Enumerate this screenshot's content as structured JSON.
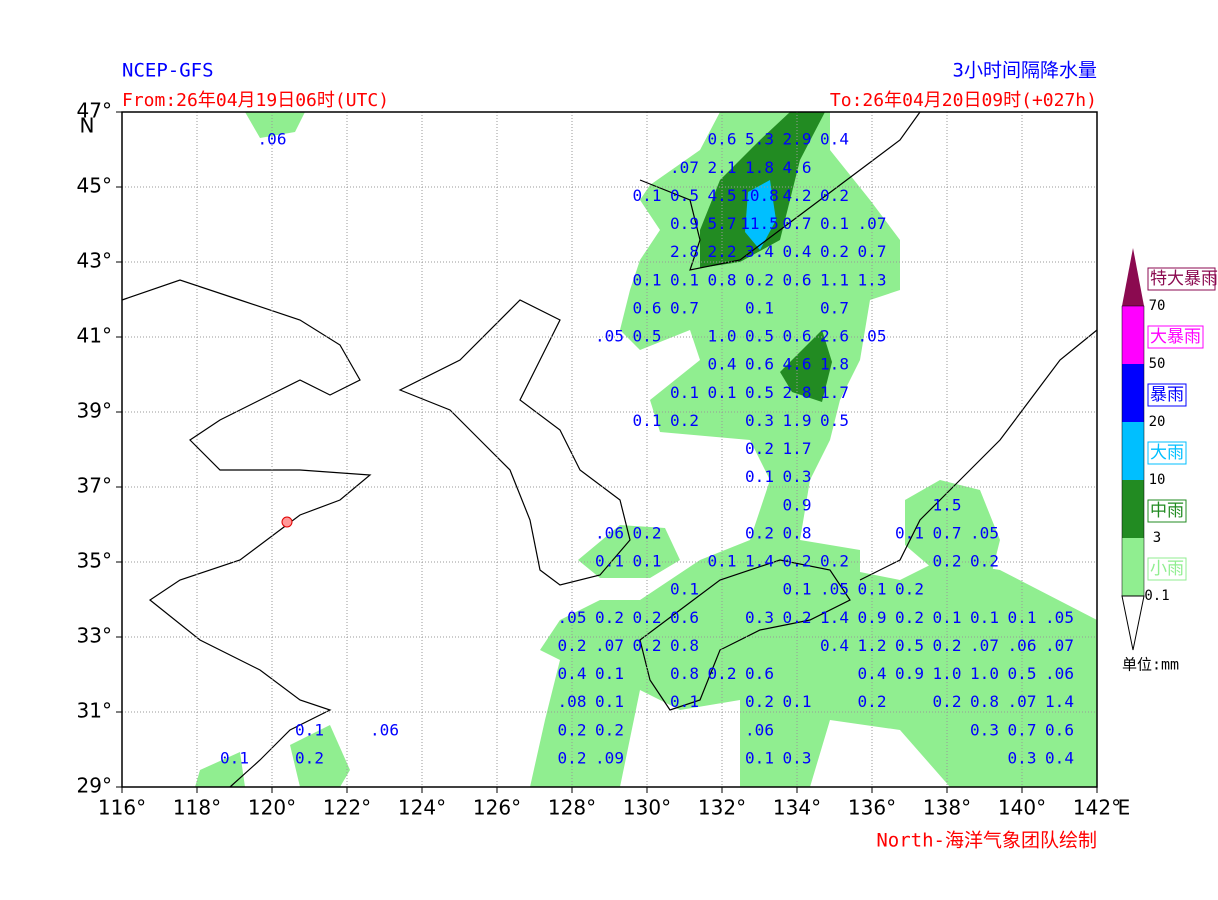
{
  "header": {
    "model": "NCEP-GFS",
    "product": "3小时间隔降水量",
    "from": "From:26年04月19日06时(UTC)",
    "to": "To:26年04月20日09时(+027h)"
  },
  "map": {
    "lon_range": [
      116,
      142
    ],
    "lat_range": [
      29,
      47
    ],
    "lon_ticks": [
      {
        "value": 116,
        "label": "116°"
      },
      {
        "value": 118,
        "label": "118°"
      },
      {
        "value": 120,
        "label": "120°"
      },
      {
        "value": 122,
        "label": "122°"
      },
      {
        "value": 124,
        "label": "124°"
      },
      {
        "value": 126,
        "label": "126°"
      },
      {
        "value": 128,
        "label": "128°"
      },
      {
        "value": 130,
        "label": "130°"
      },
      {
        "value": 132,
        "label": "132°"
      },
      {
        "value": 134,
        "label": "134°"
      },
      {
        "value": 136,
        "label": "136°"
      },
      {
        "value": 138,
        "label": "138°"
      },
      {
        "value": 140,
        "label": "140°"
      },
      {
        "value": 142,
        "label": "142°"
      }
    ],
    "lat_ticks": [
      {
        "value": 29,
        "label": "29°"
      },
      {
        "value": 31,
        "label": "31°"
      },
      {
        "value": 33,
        "label": "33°"
      },
      {
        "value": 35,
        "label": "35°"
      },
      {
        "value": 37,
        "label": "37°"
      },
      {
        "value": 39,
        "label": "39°"
      },
      {
        "value": 41,
        "label": "41°"
      },
      {
        "value": 43,
        "label": "43°"
      },
      {
        "value": 45,
        "label": "45°"
      },
      {
        "value": 47,
        "label": "47°"
      }
    ],
    "lon_unit": "E",
    "lat_unit": "N",
    "rows": [
      {
        "lat": 46.25,
        "cells": [
          {
            "lon": 120,
            "text": ".06"
          },
          {
            "lon": 132,
            "text": "0.6"
          },
          {
            "lon": 133,
            "text": "5.3"
          },
          {
            "lon": 134,
            "text": "2.9"
          },
          {
            "lon": 135,
            "text": "0.4"
          }
        ]
      },
      {
        "lat": 45.5,
        "cells": [
          {
            "lon": 131,
            "text": ".07"
          },
          {
            "lon": 132,
            "text": "2.1"
          },
          {
            "lon": 133,
            "text": "1.8"
          },
          {
            "lon": 134,
            "text": "4.6"
          }
        ]
      },
      {
        "lat": 44.75,
        "cells": [
          {
            "lon": 130,
            "text": "0.1"
          },
          {
            "lon": 131,
            "text": "0.5"
          },
          {
            "lon": 132,
            "text": "4.5"
          },
          {
            "lon": 133,
            "text": "10.8"
          },
          {
            "lon": 134,
            "text": "4.2"
          },
          {
            "lon": 135,
            "text": "0.2"
          }
        ]
      },
      {
        "lat": 44.0,
        "cells": [
          {
            "lon": 131,
            "text": "0.9"
          },
          {
            "lon": 132,
            "text": "5.7"
          },
          {
            "lon": 133,
            "text": "11.5"
          },
          {
            "lon": 134,
            "text": "0.7"
          },
          {
            "lon": 135,
            "text": "0.1"
          },
          {
            "lon": 136,
            "text": ".07"
          }
        ]
      },
      {
        "lat": 43.25,
        "cells": [
          {
            "lon": 131,
            "text": "2.8"
          },
          {
            "lon": 132,
            "text": "2.2"
          },
          {
            "lon": 133,
            "text": "3.4"
          },
          {
            "lon": 134,
            "text": "0.4"
          },
          {
            "lon": 135,
            "text": "0.2"
          },
          {
            "lon": 136,
            "text": "0.7"
          }
        ]
      },
      {
        "lat": 42.5,
        "cells": [
          {
            "lon": 130,
            "text": "0.1"
          },
          {
            "lon": 131,
            "text": "0.1"
          },
          {
            "lon": 132,
            "text": "0.8"
          },
          {
            "lon": 133,
            "text": "0.2"
          },
          {
            "lon": 134,
            "text": "0.6"
          },
          {
            "lon": 135,
            "text": "1.1"
          },
          {
            "lon": 136,
            "text": "1.3"
          }
        ]
      },
      {
        "lat": 41.75,
        "cells": [
          {
            "lon": 130,
            "text": "0.6"
          },
          {
            "lon": 131,
            "text": "0.7"
          },
          {
            "lon": 133,
            "text": "0.1"
          },
          {
            "lon": 135,
            "text": "0.7"
          }
        ]
      },
      {
        "lat": 41.0,
        "cells": [
          {
            "lon": 129,
            "text": ".05"
          },
          {
            "lon": 130,
            "text": "0.5"
          },
          {
            "lon": 132,
            "text": "1.0"
          },
          {
            "lon": 133,
            "text": "0.5"
          },
          {
            "lon": 134,
            "text": "0.6"
          },
          {
            "lon": 135,
            "text": "2.6"
          },
          {
            "lon": 136,
            "text": ".05"
          }
        ]
      },
      {
        "lat": 40.25,
        "cells": [
          {
            "lon": 132,
            "text": "0.4"
          },
          {
            "lon": 133,
            "text": "0.6"
          },
          {
            "lon": 134,
            "text": "4.6"
          },
          {
            "lon": 135,
            "text": "1.8"
          }
        ]
      },
      {
        "lat": 39.5,
        "cells": [
          {
            "lon": 131,
            "text": "0.1"
          },
          {
            "lon": 132,
            "text": "0.1"
          },
          {
            "lon": 133,
            "text": "0.5"
          },
          {
            "lon": 134,
            "text": "2.8"
          },
          {
            "lon": 135,
            "text": "1.7"
          }
        ]
      },
      {
        "lat": 38.75,
        "cells": [
          {
            "lon": 130,
            "text": "0.1"
          },
          {
            "lon": 131,
            "text": "0.2"
          },
          {
            "lon": 133,
            "text": "0.3"
          },
          {
            "lon": 134,
            "text": "1.9"
          },
          {
            "lon": 135,
            "text": "0.5"
          }
        ]
      },
      {
        "lat": 38.0,
        "cells": [
          {
            "lon": 133,
            "text": "0.2"
          },
          {
            "lon": 134,
            "text": "1.7"
          }
        ]
      },
      {
        "lat": 37.25,
        "cells": [
          {
            "lon": 133,
            "text": "0.1"
          },
          {
            "lon": 134,
            "text": "0.3"
          }
        ]
      },
      {
        "lat": 36.5,
        "cells": [
          {
            "lon": 134,
            "text": "0.9"
          },
          {
            "lon": 138,
            "text": "1.5"
          }
        ]
      },
      {
        "lat": 35.75,
        "cells": [
          {
            "lon": 129,
            "text": ".06"
          },
          {
            "lon": 130,
            "text": "0.2"
          },
          {
            "lon": 133,
            "text": "0.2"
          },
          {
            "lon": 134,
            "text": "0.8"
          },
          {
            "lon": 137,
            "text": "0.1"
          },
          {
            "lon": 138,
            "text": "0.7"
          },
          {
            "lon": 139,
            "text": ".05"
          }
        ]
      },
      {
        "lat": 35.0,
        "cells": [
          {
            "lon": 129,
            "text": "0.1"
          },
          {
            "lon": 130,
            "text": "0.1"
          },
          {
            "lon": 132,
            "text": "0.1"
          },
          {
            "lon": 133,
            "text": "1.4"
          },
          {
            "lon": 134,
            "text": "0.2"
          },
          {
            "lon": 135,
            "text": "0.2"
          },
          {
            "lon": 138,
            "text": "0.2"
          },
          {
            "lon": 139,
            "text": "0.2"
          }
        ]
      },
      {
        "lat": 34.25,
        "cells": [
          {
            "lon": 131,
            "text": "0.1"
          },
          {
            "lon": 134,
            "text": "0.1"
          },
          {
            "lon": 135,
            "text": ".05"
          },
          {
            "lon": 136,
            "text": "0.1"
          },
          {
            "lon": 137,
            "text": "0.2"
          }
        ]
      },
      {
        "lat": 33.5,
        "cells": [
          {
            "lon": 128,
            "text": ".05"
          },
          {
            "lon": 129,
            "text": "0.2"
          },
          {
            "lon": 130,
            "text": "0.2"
          },
          {
            "lon": 131,
            "text": "0.6"
          },
          {
            "lon": 133,
            "text": "0.3"
          },
          {
            "lon": 134,
            "text": "0.2"
          },
          {
            "lon": 135,
            "text": "1.4"
          },
          {
            "lon": 136,
            "text": "0.9"
          },
          {
            "lon": 137,
            "text": "0.2"
          },
          {
            "lon": 138,
            "text": "0.1"
          },
          {
            "lon": 139,
            "text": "0.1"
          },
          {
            "lon": 140,
            "text": "0.1"
          },
          {
            "lon": 141,
            "text": ".05"
          }
        ]
      },
      {
        "lat": 32.75,
        "cells": [
          {
            "lon": 128,
            "text": "0.2"
          },
          {
            "lon": 129,
            "text": ".07"
          },
          {
            "lon": 130,
            "text": "0.2"
          },
          {
            "lon": 131,
            "text": "0.8"
          },
          {
            "lon": 135,
            "text": "0.4"
          },
          {
            "lon": 136,
            "text": "1.2"
          },
          {
            "lon": 137,
            "text": "0.5"
          },
          {
            "lon": 138,
            "text": "0.2"
          },
          {
            "lon": 139,
            "text": ".07"
          },
          {
            "lon": 140,
            "text": ".06"
          },
          {
            "lon": 141,
            "text": ".07"
          }
        ]
      },
      {
        "lat": 32.0,
        "cells": [
          {
            "lon": 128,
            "text": "0.4"
          },
          {
            "lon": 129,
            "text": "0.1"
          },
          {
            "lon": 131,
            "text": "0.8"
          },
          {
            "lon": 132,
            "text": "0.2"
          },
          {
            "lon": 133,
            "text": "0.6"
          },
          {
            "lon": 136,
            "text": "0.4"
          },
          {
            "lon": 137,
            "text": "0.9"
          },
          {
            "lon": 138,
            "text": "1.0"
          },
          {
            "lon": 139,
            "text": "1.0"
          },
          {
            "lon": 140,
            "text": "0.5"
          },
          {
            "lon": 141,
            "text": ".06"
          }
        ]
      },
      {
        "lat": 31.25,
        "cells": [
          {
            "lon": 128,
            "text": ".08"
          },
          {
            "lon": 129,
            "text": "0.1"
          },
          {
            "lon": 131,
            "text": "0.1"
          },
          {
            "lon": 133,
            "text": "0.2"
          },
          {
            "lon": 134,
            "text": "0.1"
          },
          {
            "lon": 136,
            "text": "0.2"
          },
          {
            "lon": 138,
            "text": "0.2"
          },
          {
            "lon": 139,
            "text": "0.8"
          },
          {
            "lon": 140,
            "text": ".07"
          },
          {
            "lon": 141,
            "text": "1.4"
          }
        ]
      },
      {
        "lat": 30.5,
        "cells": [
          {
            "lon": 121,
            "text": "0.1"
          },
          {
            "lon": 123,
            "text": ".06"
          },
          {
            "lon": 128,
            "text": "0.2"
          },
          {
            "lon": 129,
            "text": "0.2"
          },
          {
            "lon": 133,
            "text": ".06"
          },
          {
            "lon": 139,
            "text": "0.3"
          },
          {
            "lon": 140,
            "text": "0.7"
          },
          {
            "lon": 141,
            "text": "0.6"
          }
        ]
      },
      {
        "lat": 29.75,
        "cells": [
          {
            "lon": 119,
            "text": "0.1"
          },
          {
            "lon": 121,
            "text": "0.2"
          },
          {
            "lon": 128,
            "text": "0.2"
          },
          {
            "lon": 129,
            "text": ".09"
          },
          {
            "lon": 133,
            "text": "0.1"
          },
          {
            "lon": 134,
            "text": "0.3"
          },
          {
            "lon": 140,
            "text": "0.3"
          },
          {
            "lon": 141,
            "text": "0.4"
          }
        ]
      }
    ]
  },
  "legend": {
    "levels": [
      {
        "name": "小雨",
        "color": "#90ee90"
      },
      {
        "name": "中雨",
        "color": "#228b22"
      },
      {
        "name": "大雨",
        "color": "#00bfff"
      },
      {
        "name": "暴雨",
        "color": "#0000ff"
      },
      {
        "name": "大暴雨",
        "color": "#ff00ff"
      },
      {
        "name": "特大暴雨",
        "color": "#8b0a50"
      }
    ],
    "bounds": [
      0.1,
      3,
      10,
      20,
      50,
      70
    ],
    "unit": "单位:mm"
  },
  "credit": "North-海洋气象团队绘制"
}
